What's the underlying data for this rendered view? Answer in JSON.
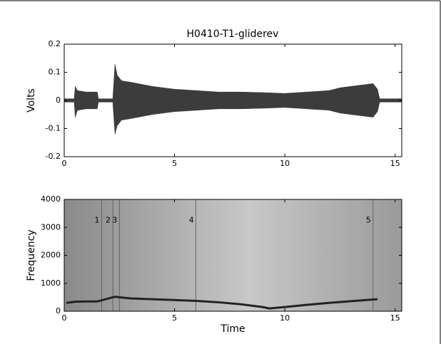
{
  "chart_data": [
    {
      "type": "envelope",
      "title": "H0410-T1-gliderev",
      "ylabel": "Volts",
      "color": "#3c3c3c",
      "xlim": [
        0,
        15.3
      ],
      "xticks": [
        0,
        5,
        10,
        15
      ],
      "ylim": [
        -0.2,
        0.2
      ],
      "yticks": [
        -0.2,
        -0.1,
        0,
        0.1,
        0.2
      ],
      "x": [
        0,
        0.45,
        0.5,
        0.6,
        1.0,
        1.5,
        1.55,
        2.2,
        2.3,
        2.4,
        2.6,
        3.0,
        4.0,
        5.0,
        6.0,
        7.0,
        8.0,
        9.0,
        10.0,
        11.0,
        12.0,
        12.5,
        13.0,
        13.5,
        14.0,
        14.2,
        14.3,
        15.3
      ],
      "upper": [
        0.006,
        0.006,
        0.05,
        0.035,
        0.03,
        0.03,
        0.006,
        0.006,
        0.13,
        0.09,
        0.07,
        0.065,
        0.05,
        0.04,
        0.035,
        0.03,
        0.03,
        0.028,
        0.025,
        0.03,
        0.035,
        0.045,
        0.05,
        0.055,
        0.06,
        0.04,
        0.006,
        0.006
      ],
      "lower": [
        -0.006,
        -0.006,
        -0.06,
        -0.035,
        -0.03,
        -0.03,
        -0.006,
        -0.006,
        -0.12,
        -0.09,
        -0.07,
        -0.065,
        -0.05,
        -0.04,
        -0.035,
        -0.03,
        -0.03,
        -0.028,
        -0.025,
        -0.03,
        -0.035,
        -0.045,
        -0.05,
        -0.055,
        -0.06,
        -0.04,
        -0.006,
        -0.006
      ]
    },
    {
      "type": "spectrogram",
      "xlabel": "Time",
      "ylabel": "Frequency",
      "color": "#222222",
      "xlim": [
        0,
        15.3
      ],
      "xticks": [
        0,
        5,
        10,
        15
      ],
      "ylim": [
        0,
        4000
      ],
      "yticks": [
        0,
        1000,
        2000,
        3000,
        4000
      ],
      "x": [
        0.1,
        0.5,
        1.0,
        1.5,
        2.3,
        2.5,
        3.0,
        4.0,
        5.0,
        6.0,
        7.0,
        8.0,
        9.0,
        9.3,
        10.0,
        11.0,
        12.0,
        13.0,
        14.0,
        14.2
      ],
      "values": [
        300,
        340,
        350,
        350,
        520,
        500,
        460,
        430,
        400,
        370,
        320,
        250,
        150,
        100,
        150,
        230,
        300,
        360,
        420,
        430
      ],
      "annotations": [
        {
          "text": "1",
          "x": 1.7,
          "y": 3250
        },
        {
          "text": "2",
          "x": 2.2,
          "y": 3250
        },
        {
          "text": "3",
          "x": 2.5,
          "y": 3250
        },
        {
          "text": "4",
          "x": 5.97,
          "y": 3250
        },
        {
          "text": "5",
          "x": 14.0,
          "y": 3250
        }
      ]
    }
  ]
}
